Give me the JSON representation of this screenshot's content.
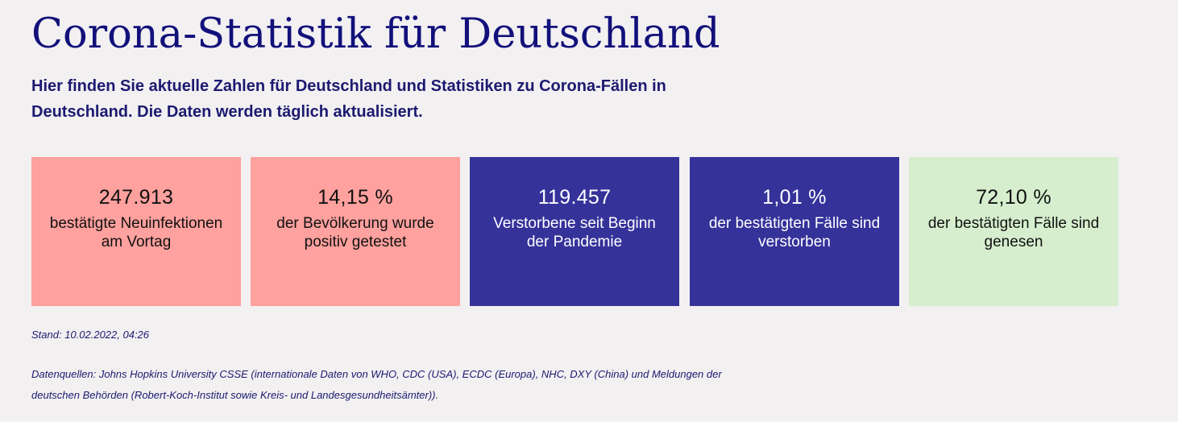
{
  "header": {
    "title": "Corona-Statistik für Deutschland",
    "intro": "Hier finden Sie aktuelle Zahlen für Deutschland und Statistiken zu Corona-Fällen in Deutschland. Die Daten werden täglich aktualisiert."
  },
  "cards": [
    {
      "value": "247.913",
      "label": "bestätigte Neuinfektionen am Vortag",
      "color": "#ffa19e"
    },
    {
      "value": "14,15 %",
      "label": "der Bevölkerung wurde positiv getestet",
      "color": "#ffa19e"
    },
    {
      "value": "119.457",
      "label": "Verstorbene seit Beginn der Pandemie",
      "color": "#35329a"
    },
    {
      "value": "1,01 %",
      "label": "der bestätigten Fälle sind verstorben",
      "color": "#35329a"
    },
    {
      "value": "72,10 %",
      "label": "der bestätigten Fälle sind genesen",
      "color": "#d6eecd"
    }
  ],
  "footer": {
    "stand": "Stand: 10.02.2022, 04:26",
    "sources": "Datenquellen: Johns Hopkins University CSSE (internationale Daten von WHO, CDC (USA), ECDC (Europa), NHC, DXY (China) und Meldungen der deutschen Behörden (Robert-Koch-Institut sowie Kreis- und Landesgesundheitsämter))."
  },
  "colors": {
    "background": "#f2f0f1",
    "title": "#12107a",
    "text_navy": "#1c1a70"
  }
}
